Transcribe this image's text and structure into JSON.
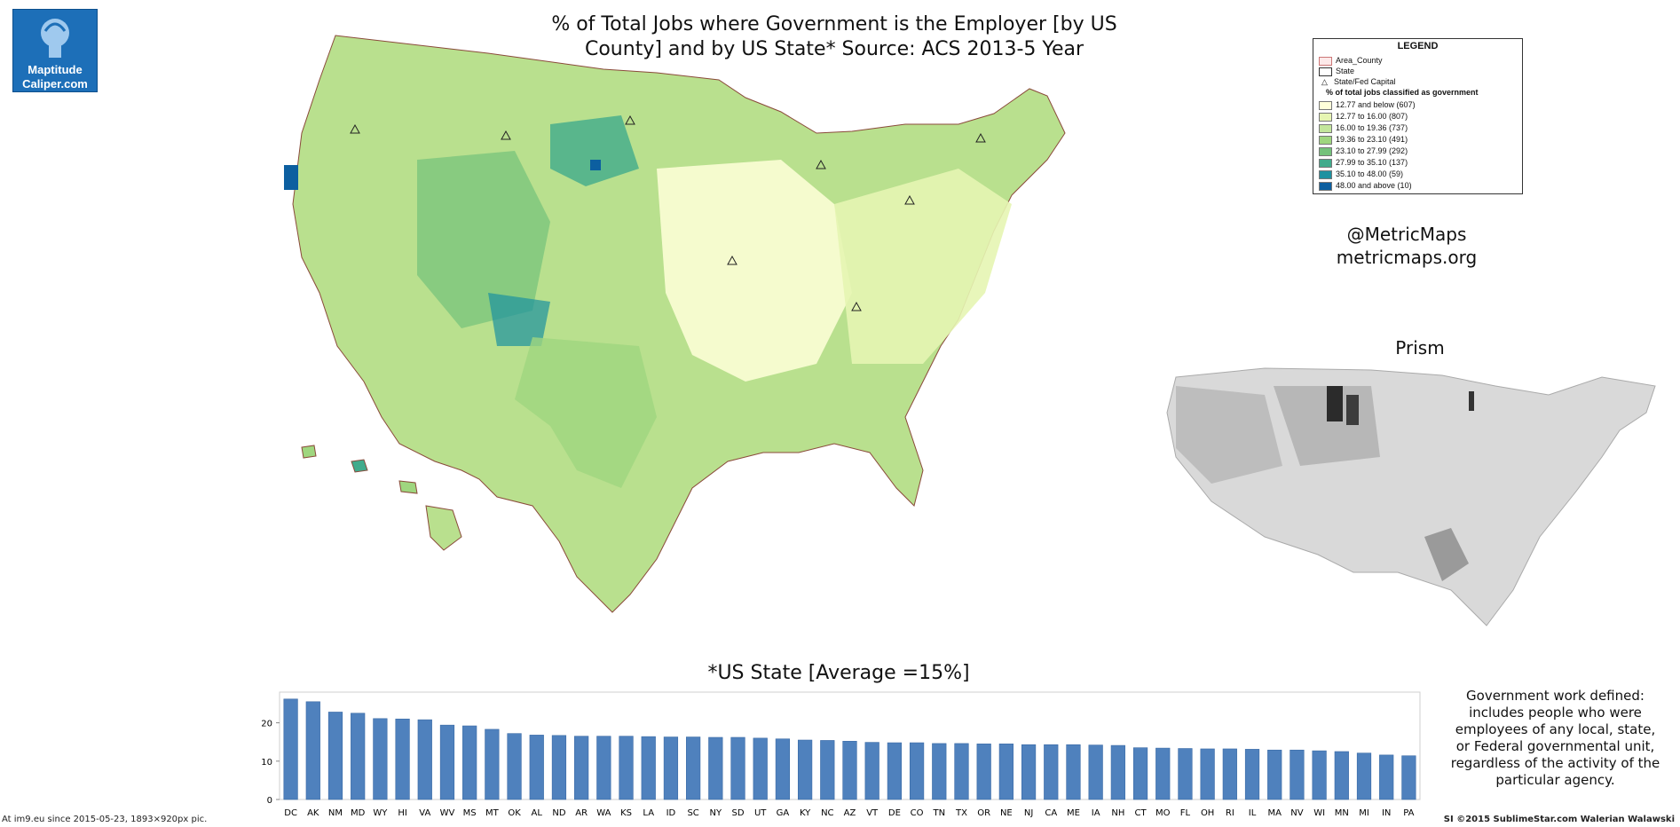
{
  "logo": {
    "line1": "Maptitude",
    "line2": "Caliper.com"
  },
  "map_title": {
    "line1": "% of Total Jobs where Government is the Employer [by US",
    "line2": "County] and by US State*  Source: ACS 2013-5 Year"
  },
  "legend": {
    "title": "LEGEND",
    "items": [
      {
        "label": "Area_County",
        "color": "#fde9e9"
      },
      {
        "label": "State",
        "color": "#ffffff"
      },
      {
        "label": "State/Fed Capital",
        "color": "#ffffff"
      }
    ],
    "subtitle": "% of total jobs classified as government",
    "classes": [
      {
        "label": "12.77 and below (607)",
        "color": "#ffffd9"
      },
      {
        "label": "12.77 to 16.00 (807)",
        "color": "#e6f5b2"
      },
      {
        "label": "16.00 to 19.36 (737)",
        "color": "#c3e69c"
      },
      {
        "label": "19.36 to 23.10 (491)",
        "color": "#9fd67f"
      },
      {
        "label": "23.10 to 27.99 (292)",
        "color": "#74c27a"
      },
      {
        "label": "27.99 to 35.10 (137)",
        "color": "#41ab8c"
      },
      {
        "label": "35.10 to 48.00 (59)",
        "color": "#1d91a0"
      },
      {
        "label": "48.00 and above (10)",
        "color": "#0c5fa0"
      }
    ]
  },
  "credits": {
    "handle": "@MetricMaps",
    "site": "metricmaps.org"
  },
  "prism_title": "Prism",
  "bar_title": "*US State [Average =15%]",
  "definition": {
    "lines": [
      "Government work defined:",
      "includes people who were",
      "employees of any local, state,",
      "or Federal governmental unit,",
      "regardless of the activity of the",
      "particular agency."
    ]
  },
  "footer": {
    "left": "At im9.eu since 2015-05-23, 1893×920px pic.",
    "right": "SI ©2015 SublimeStar.com Walerian Walawski"
  },
  "chart_data": {
    "type": "bar",
    "title": "*US State [Average =15%]",
    "categories": [
      "DC",
      "AK",
      "NM",
      "MD",
      "WY",
      "HI",
      "VA",
      "WV",
      "MS",
      "MT",
      "OK",
      "AL",
      "ND",
      "AR",
      "WA",
      "KS",
      "LA",
      "ID",
      "SC",
      "NY",
      "SD",
      "UT",
      "GA",
      "KY",
      "NC",
      "AZ",
      "VT",
      "DE",
      "CO",
      "TN",
      "TX",
      "OR",
      "NE",
      "NJ",
      "CA",
      "ME",
      "IA",
      "NH",
      "CT",
      "MO",
      "FL",
      "OH",
      "RI",
      "IL",
      "MA",
      "NV",
      "WI",
      "MN",
      "MI",
      "IN",
      "PA"
    ],
    "values": [
      26.2,
      25.5,
      22.8,
      22.5,
      21.1,
      21.0,
      20.8,
      19.4,
      19.2,
      18.3,
      17.2,
      16.8,
      16.7,
      16.5,
      16.5,
      16.5,
      16.4,
      16.3,
      16.3,
      16.2,
      16.2,
      16.0,
      15.8,
      15.5,
      15.4,
      15.2,
      14.9,
      14.8,
      14.8,
      14.6,
      14.6,
      14.5,
      14.5,
      14.3,
      14.3,
      14.3,
      14.2,
      14.1,
      13.5,
      13.4,
      13.3,
      13.2,
      13.2,
      13.1,
      12.9,
      12.9,
      12.7,
      12.5,
      12.1,
      11.6,
      11.4
    ],
    "yticks": [
      0,
      10,
      20
    ],
    "ylim": [
      0,
      28
    ],
    "color": "#4f81bd",
    "grid": false,
    "xlabel": "",
    "ylabel": ""
  }
}
